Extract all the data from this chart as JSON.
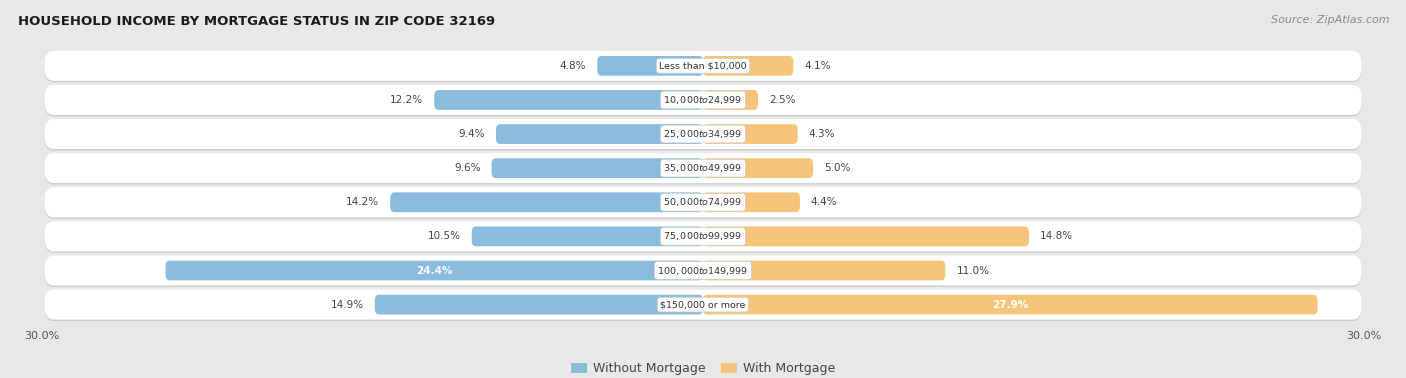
{
  "title": "HOUSEHOLD INCOME BY MORTGAGE STATUS IN ZIP CODE 32169",
  "source": "Source: ZipAtlas.com",
  "categories": [
    "Less than $10,000",
    "$10,000 to $24,999",
    "$25,000 to $34,999",
    "$35,000 to $49,999",
    "$50,000 to $74,999",
    "$75,000 to $99,999",
    "$100,000 to $149,999",
    "$150,000 or more"
  ],
  "without_mortgage": [
    4.8,
    12.2,
    9.4,
    9.6,
    14.2,
    10.5,
    24.4,
    14.9
  ],
  "with_mortgage": [
    4.1,
    2.5,
    4.3,
    5.0,
    4.4,
    14.8,
    11.0,
    27.9
  ],
  "color_without": "#8bbcdd",
  "color_with": "#f5c47a",
  "bg_color": "#e8e8e8",
  "row_bg": "#f2f2f2",
  "axis_limit": 30.0,
  "legend_label_without": "Without Mortgage",
  "legend_label_with": "With Mortgage",
  "label_inside_threshold_wo": 20.0,
  "label_inside_threshold_wm": 20.0
}
